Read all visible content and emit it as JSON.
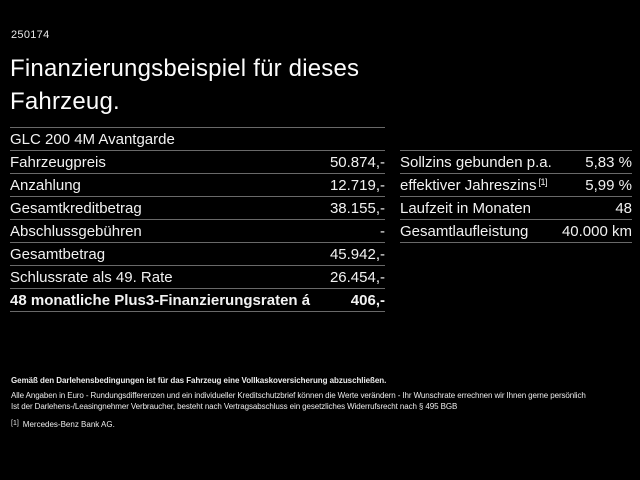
{
  "page": {
    "ref_number": "250174",
    "title_line1": "Finanzierungsbeispiel für dieses",
    "title_line2": "Fahrzeug."
  },
  "vehicle_table": {
    "header": "GLC 200 4M Avantgarde",
    "rows": [
      {
        "label": "Fahrzeugpreis",
        "value": "50.874,-"
      },
      {
        "label": "Anzahlung",
        "value": "12.719,-"
      },
      {
        "label": "Gesamtkreditbetrag",
        "value": "38.155,-"
      },
      {
        "label": "Abschlussgebühren",
        "value": "-"
      },
      {
        "label": "Gesamtbetrag",
        "value": "45.942,-"
      },
      {
        "label": "Schlussrate als 49. Rate",
        "value": "26.454,-"
      },
      {
        "label": "48 monatliche Plus3-Finanzierungsraten á",
        "value": "406,-"
      }
    ]
  },
  "terms_table": {
    "rows": [
      {
        "label": "Sollzins gebunden p.a.",
        "sup": "",
        "value": "5,83 %"
      },
      {
        "label": "effektiver Jahreszins",
        "sup": "[1]",
        "value": "5,99 %"
      },
      {
        "label": "Laufzeit in Monaten",
        "sup": "",
        "value": "48"
      },
      {
        "label": "Gesamtlaufleistung",
        "sup": "",
        "value": "40.000 km"
      }
    ]
  },
  "disclaimer": {
    "bold_line": "Gemäß den Darlehensbedingungen ist für das Fahrzeug eine Vollkaskoversicherung abzuschließen.",
    "line2": "Alle Angaben in Euro - Rundungsdifferenzen und ein individueller Kreditschutzbrief können die Werte verändern - Ihr Wunschrate errechnen wir Ihnen gerne persönlich",
    "line3": "Ist der Darlehens-/Leasingnehmer Verbraucher, besteht nach Vertragsabschluss ein gesetzliches Widerrufsrecht nach § 495 BGB",
    "footnote_marker": "[1]",
    "footnote_text": "Mercedes-Benz Bank AG."
  },
  "colors": {
    "background": "#000000",
    "text": "#f2f2f2",
    "separator": "#696969"
  }
}
